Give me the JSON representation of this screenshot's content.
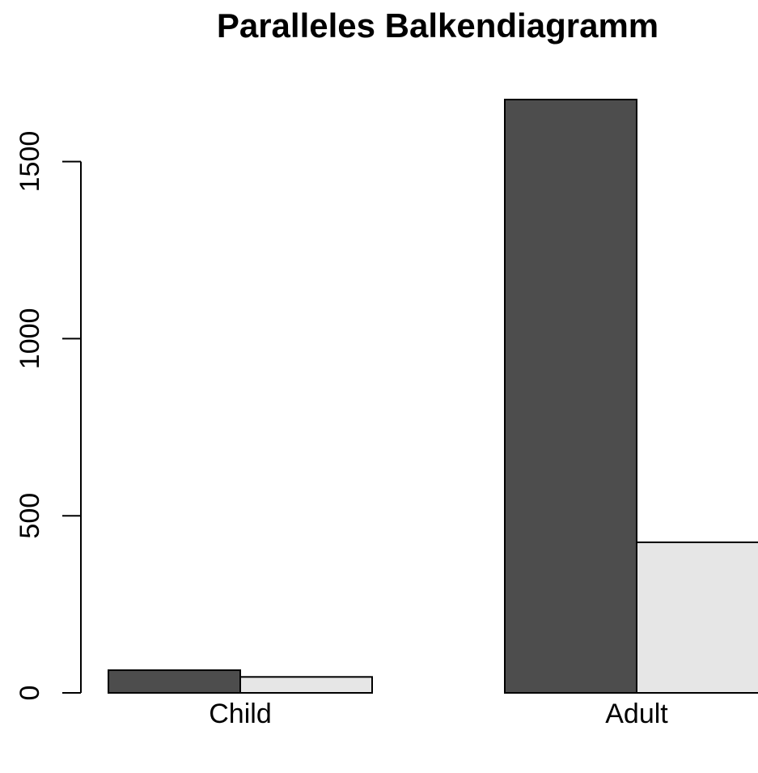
{
  "chart_data": {
    "type": "bar",
    "title": "Paralleles Balkendiagramm",
    "xlabel": "",
    "ylabel": "",
    "categories": [
      "Child",
      "Adult"
    ],
    "series": [
      {
        "values": [
          64,
          1675
        ],
        "color": "#4d4d4d"
      },
      {
        "values": [
          45,
          425
        ],
        "color": "#e6e6e6"
      }
    ],
    "ylim": [
      0,
      1675
    ],
    "yticks": [
      0,
      500,
      1000,
      1500
    ],
    "ytick_labels": [
      "0",
      "500",
      "1000",
      "1500"
    ],
    "grid": false,
    "legend": "none"
  }
}
